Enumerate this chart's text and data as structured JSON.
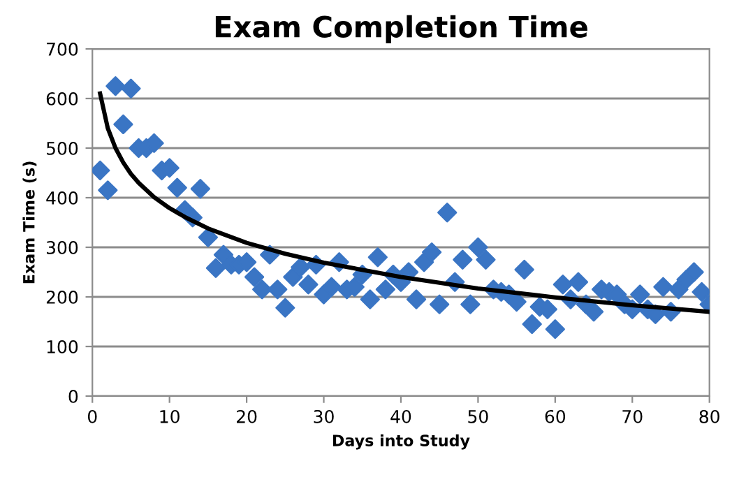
{
  "chart_data": {
    "type": "scatter",
    "title": "Exam Completion Time",
    "xlabel": "Days into Study",
    "ylabel": "Exam Time (s)",
    "xlim": [
      0,
      80
    ],
    "xticks": [
      0,
      10,
      20,
      30,
      40,
      50,
      60,
      70,
      80
    ],
    "ylim": [
      0,
      700
    ],
    "yticks": [
      0,
      100,
      200,
      300,
      400,
      500,
      600,
      700
    ],
    "grid": "y",
    "series": [
      {
        "color": "#3a75c4",
        "marker": "diamond",
        "x": [
          1,
          2,
          3,
          4,
          5,
          6,
          7,
          8,
          9,
          10,
          11,
          12,
          13,
          14,
          15,
          16,
          17,
          18,
          19,
          20,
          21,
          22,
          23,
          24,
          25,
          26,
          27,
          28,
          29,
          30,
          31,
          32,
          33,
          34,
          35,
          36,
          37,
          38,
          39,
          40,
          41,
          42,
          43,
          44,
          45,
          46,
          47,
          48,
          49,
          50,
          51,
          52,
          53,
          54,
          55,
          56,
          57,
          58,
          59,
          60,
          61,
          62,
          63,
          64,
          65,
          66,
          67,
          68,
          69,
          70,
          71,
          72,
          73,
          74,
          75,
          76,
          77,
          78,
          79,
          80
        ],
        "values": [
          455,
          415,
          625,
          548,
          620,
          500,
          500,
          510,
          455,
          460,
          420,
          375,
          360,
          418,
          320,
          258,
          285,
          265,
          265,
          270,
          240,
          215,
          285,
          215,
          178,
          240,
          260,
          225,
          265,
          205,
          220,
          270,
          215,
          220,
          245,
          195,
          280,
          215,
          245,
          230,
          250,
          195,
          270,
          290,
          185,
          370,
          230,
          275,
          185,
          300,
          275,
          215,
          210,
          205,
          190,
          255,
          145,
          180,
          175,
          135,
          225,
          195,
          230,
          185,
          170,
          215,
          210,
          205,
          185,
          175,
          205,
          175,
          165,
          220,
          170,
          215,
          235,
          250,
          210,
          185
        ]
      },
      {
        "type": "line",
        "color": "#000000",
        "marker": "none",
        "line_style": "solid",
        "x": [
          1,
          2,
          3,
          4,
          5,
          6,
          8,
          10,
          12,
          15,
          20,
          25,
          30,
          40,
          50,
          60,
          70,
          80
        ],
        "values": [
          610,
          540,
          500,
          471,
          448,
          430,
          401,
          379,
          361,
          338,
          309,
          287,
          269,
          240,
          217,
          199,
          183,
          170
        ]
      }
    ]
  }
}
